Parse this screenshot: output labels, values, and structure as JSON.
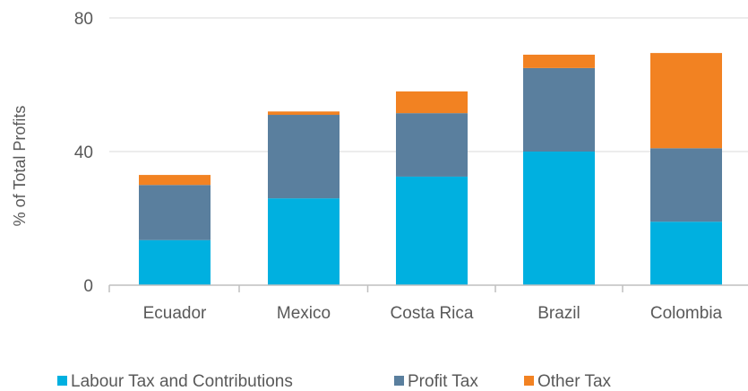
{
  "chart_data": {
    "type": "bar",
    "stacked": true,
    "categories": [
      "Ecuador",
      "Mexico",
      "Costa Rica",
      "Brazil",
      "Colombia"
    ],
    "series": [
      {
        "name": "Labour Tax and Contributions",
        "color": "#00b0e0",
        "values": [
          13.5,
          26,
          32.5,
          40,
          19
        ]
      },
      {
        "name": "Profit Tax",
        "color": "#5a7f9e",
        "values": [
          16.5,
          25,
          19,
          25,
          22
        ]
      },
      {
        "name": "Other Tax",
        "color": "#f28222",
        "values": [
          3,
          1,
          6.5,
          4,
          28.5
        ]
      }
    ],
    "ylabel": "% of Total Profits",
    "xlabel": "",
    "ylim": [
      0,
      80
    ],
    "yticks": [
      0,
      40,
      80
    ],
    "grid": true,
    "legend": "bottom"
  }
}
